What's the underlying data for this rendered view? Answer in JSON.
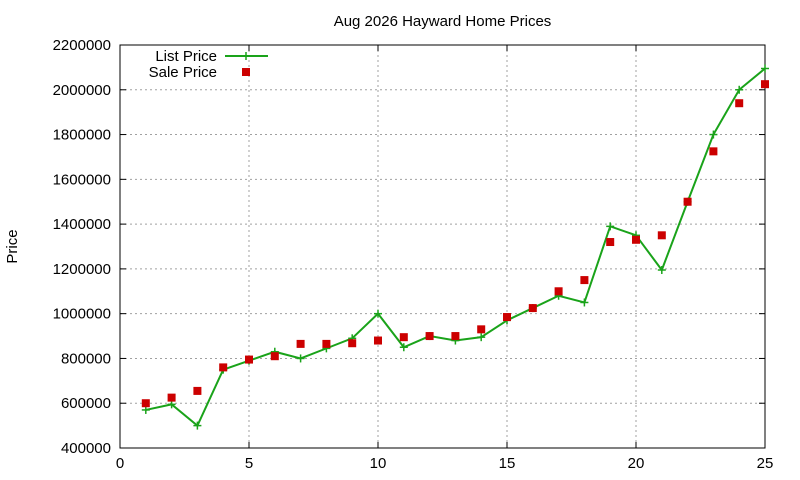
{
  "chart_data": {
    "type": "line",
    "title": "Aug 2026 Hayward Home Prices",
    "xlabel": "",
    "ylabel": "Price",
    "xlim": [
      0,
      25
    ],
    "ylim": [
      400000,
      2200000
    ],
    "xticks": [
      0,
      5,
      10,
      15,
      20,
      25
    ],
    "yticks": [
      400000,
      600000,
      800000,
      1000000,
      1200000,
      1400000,
      1600000,
      1800000,
      2000000,
      2200000
    ],
    "grid": true,
    "legend_position": "top-left",
    "series": [
      {
        "name": "List Price",
        "style": "line+cross",
        "color": "#1aa31a",
        "x": [
          1,
          2,
          3,
          4,
          5,
          6,
          7,
          8,
          9,
          10,
          11,
          12,
          13,
          14,
          15,
          16,
          17,
          18,
          19,
          20,
          21,
          22,
          23,
          24,
          25
        ],
        "y": [
          570000,
          595000,
          500000,
          750000,
          790000,
          830000,
          800000,
          845000,
          890000,
          1000000,
          850000,
          900000,
          880000,
          895000,
          970000,
          1025000,
          1080000,
          1050000,
          1390000,
          1350000,
          1195000,
          1500000,
          1800000,
          2000000,
          2095000
        ]
      },
      {
        "name": "Sale Price",
        "style": "square",
        "color": "#cc0000",
        "x": [
          1,
          2,
          3,
          4,
          5,
          6,
          7,
          8,
          9,
          10,
          11,
          12,
          13,
          14,
          15,
          16,
          17,
          18,
          19,
          20,
          21,
          22,
          23,
          24,
          25
        ],
        "y": [
          600000,
          625000,
          655000,
          760000,
          795000,
          810000,
          865000,
          865000,
          868000,
          880000,
          895000,
          900000,
          900000,
          930000,
          985000,
          1025000,
          1100000,
          1150000,
          1320000,
          1330000,
          1350000,
          1500000,
          1725000,
          1940000,
          2025000
        ]
      }
    ]
  }
}
